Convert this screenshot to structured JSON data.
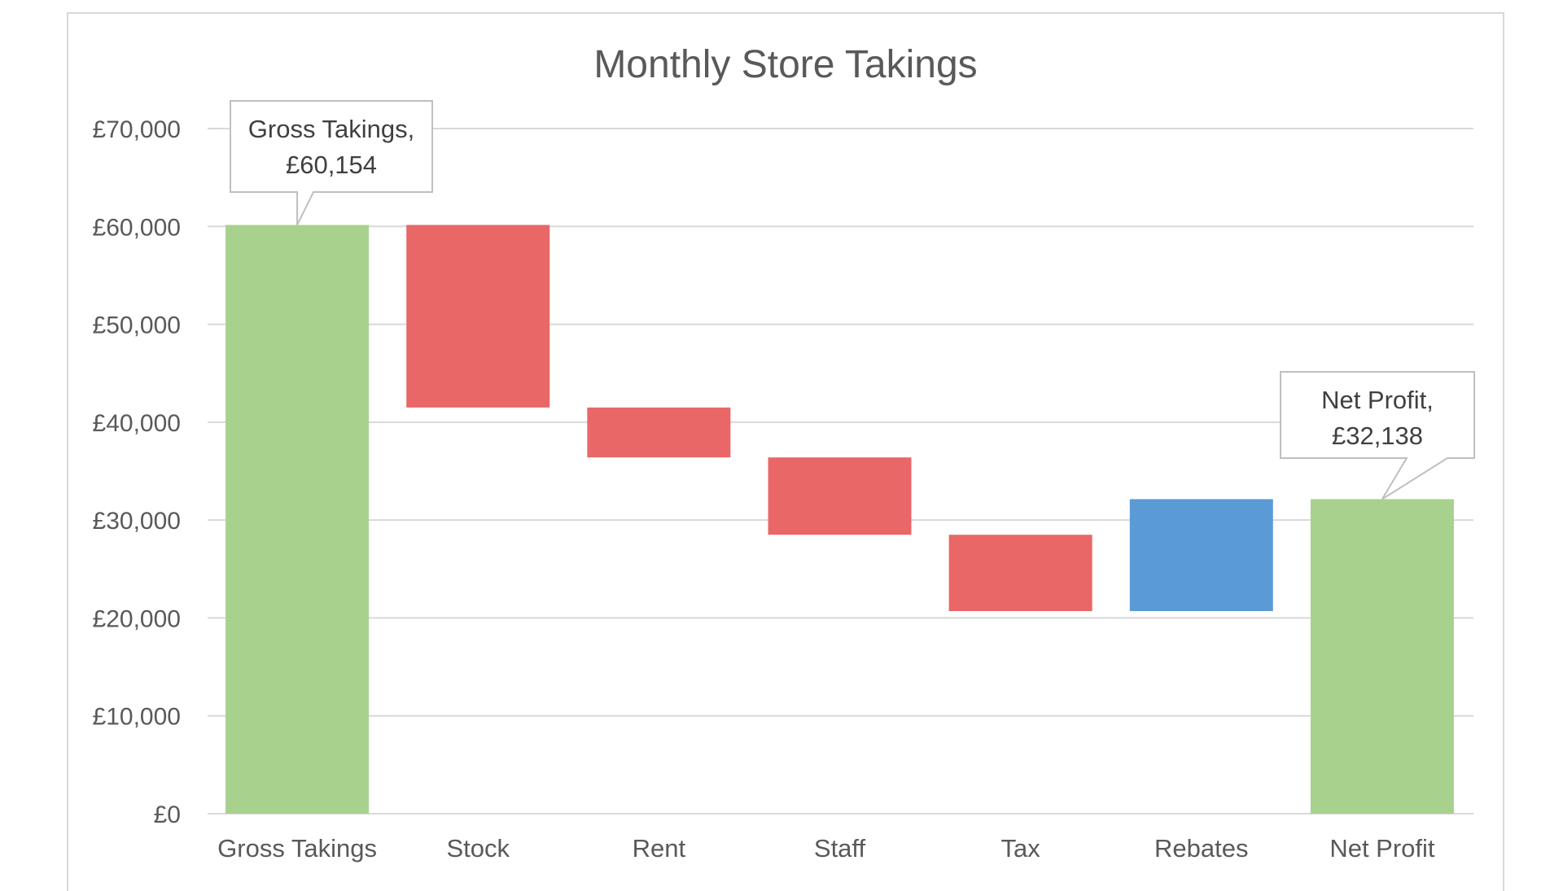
{
  "chart_data": {
    "type": "waterfall",
    "title": "Monthly Store Takings",
    "xlabel": "",
    "ylabel": "",
    "ylim": [
      0,
      70000
    ],
    "yticks": [
      0,
      10000,
      20000,
      30000,
      40000,
      50000,
      60000,
      70000
    ],
    "ytick_labels": [
      "£0",
      "£10,000",
      "£20,000",
      "£30,000",
      "£40,000",
      "£50,000",
      "£60,000",
      "£70,000"
    ],
    "grid": true,
    "legend": "none",
    "categories": [
      "Gross Takings",
      "Stock",
      "Rent",
      "Staff",
      "Tax",
      "Rebates",
      "Net Profit"
    ],
    "bars": [
      {
        "category": "Gross Takings",
        "kind": "total",
        "start": 0,
        "end": 60154,
        "color": "#A9D18E"
      },
      {
        "category": "Stock",
        "kind": "decrease",
        "start": 60154,
        "end": 41500,
        "color": "#E96767"
      },
      {
        "category": "Rent",
        "kind": "decrease",
        "start": 41500,
        "end": 36400,
        "color": "#E96767"
      },
      {
        "category": "Staff",
        "kind": "decrease",
        "start": 36400,
        "end": 28500,
        "color": "#E96767"
      },
      {
        "category": "Tax",
        "kind": "decrease",
        "start": 28500,
        "end": 20700,
        "color": "#E96767"
      },
      {
        "category": "Rebates",
        "kind": "increase",
        "start": 20700,
        "end": 32138,
        "color": "#5B9BD5"
      },
      {
        "category": "Net Profit",
        "kind": "total",
        "start": 0,
        "end": 32138,
        "color": "#A9D18E"
      }
    ],
    "annotations": [
      {
        "category": "Gross Takings",
        "lines": [
          "Gross Takings,",
          "£60,154"
        ]
      },
      {
        "category": "Net Profit",
        "lines": [
          "Net Profit,",
          "£32,138"
        ]
      }
    ]
  }
}
